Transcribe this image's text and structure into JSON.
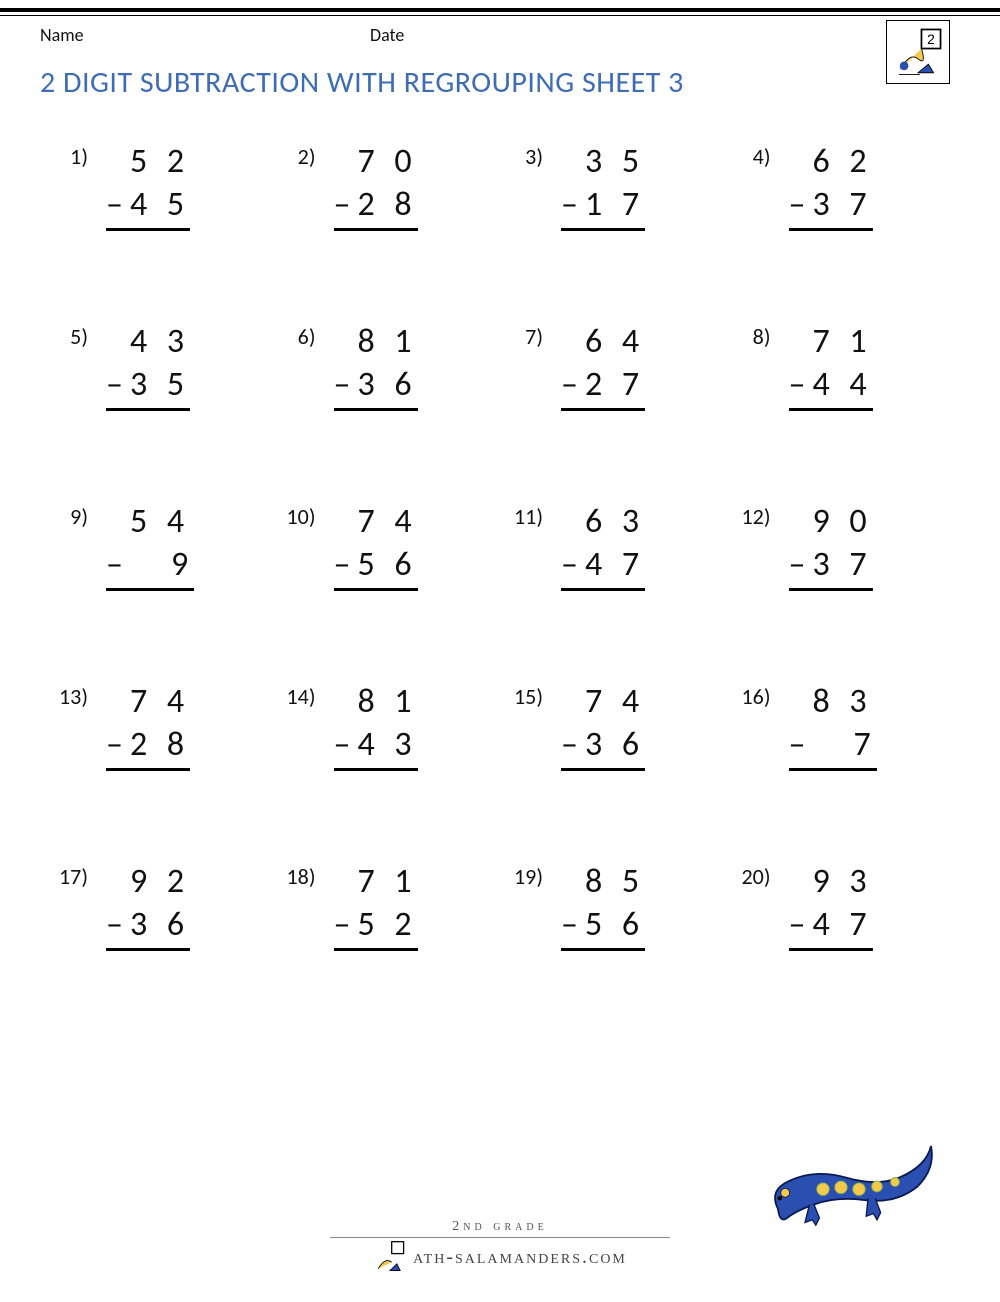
{
  "header": {
    "name_label": "Name",
    "date_label": "Date"
  },
  "title": "2 DIGIT SUBTRACTION WITH REGROUPING SHEET 3",
  "title_color": "#3e6db5",
  "operator": "–",
  "problems": [
    {
      "n": "1)",
      "top": "5 2",
      "bot": "4 5"
    },
    {
      "n": "2)",
      "top": "7 0",
      "bot": "2 8"
    },
    {
      "n": "3)",
      "top": "3 5",
      "bot": "1 7"
    },
    {
      "n": "4)",
      "top": "6 2",
      "bot": "3 7"
    },
    {
      "n": "5)",
      "top": "4 3",
      "bot": "3 5"
    },
    {
      "n": "6)",
      "top": "8 1",
      "bot": "3 6"
    },
    {
      "n": "7)",
      "top": "6 4",
      "bot": "2 7"
    },
    {
      "n": "8)",
      "top": "7 1",
      "bot": "4 4"
    },
    {
      "n": "9)",
      "top": "5 4",
      "bot": "   9"
    },
    {
      "n": "10)",
      "top": "7 4",
      "bot": "5 6"
    },
    {
      "n": "11)",
      "top": "6 3",
      "bot": "4 7"
    },
    {
      "n": "12)",
      "top": "9 0",
      "bot": "3 7"
    },
    {
      "n": "13)",
      "top": "7 4",
      "bot": "2 8"
    },
    {
      "n": "14)",
      "top": "8 1",
      "bot": "4 3"
    },
    {
      "n": "15)",
      "top": "7 4",
      "bot": "3 6"
    },
    {
      "n": "16)",
      "top": "8 3",
      "bot": "   7"
    },
    {
      "n": "17)",
      "top": "9 2",
      "bot": "3 6"
    },
    {
      "n": "18)",
      "top": "7 1",
      "bot": "5 2"
    },
    {
      "n": "19)",
      "top": "8 5",
      "bot": "5 6"
    },
    {
      "n": "20)",
      "top": "9 3",
      "bot": "4 7"
    }
  ],
  "footer": {
    "grade_text": "2nd grade",
    "brand_text": "ath-salamanders.com"
  },
  "colors": {
    "salamander_body": "#2a4fb0",
    "salamander_spots": "#f2c94c",
    "text": "#111111",
    "background": "#ffffff"
  }
}
